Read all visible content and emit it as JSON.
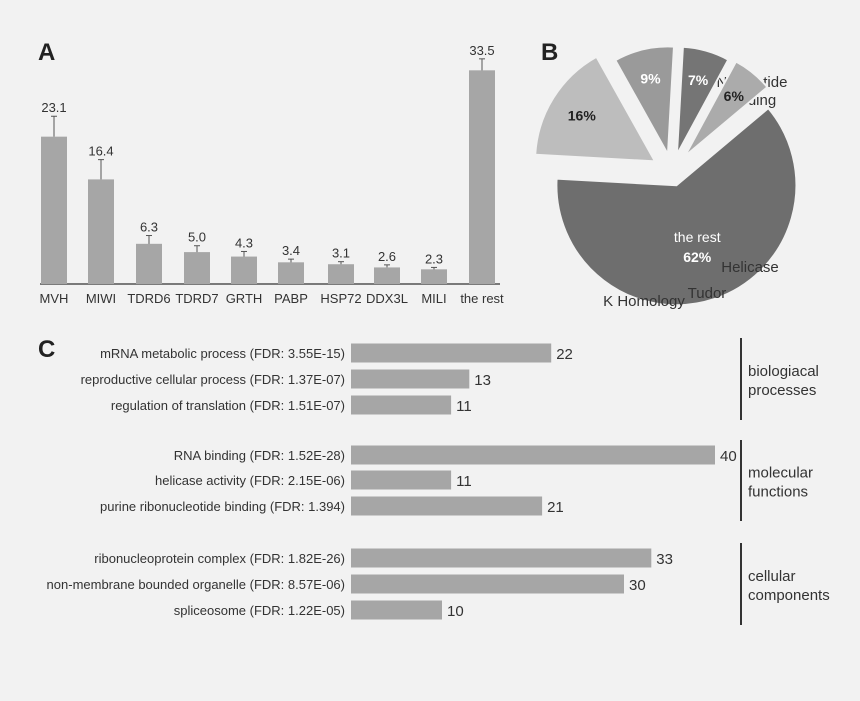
{
  "panels": {
    "a": "A",
    "b": "B",
    "c": "C"
  },
  "colors": {
    "background": "#f2f2f2",
    "bar": "#a6a6a6",
    "axis": "#333333",
    "text": "#333333",
    "pie_dark": "#6e6e6e",
    "pie_light": "#bdbdbd",
    "pie_mid": "#9a9a9a",
    "pie_tudor": "#757575",
    "pie_khom": "#ababab"
  },
  "chart_data": [
    {
      "id": "A",
      "type": "bar",
      "categories": [
        "MVH",
        "MIWI",
        "TDRD6",
        "TDRD7",
        "GRTH",
        "PABP",
        "HSP72",
        "DDX3L",
        "MILI",
        "the rest"
      ],
      "values": [
        23.1,
        16.4,
        6.3,
        5.0,
        4.3,
        3.4,
        3.1,
        2.6,
        2.3,
        33.5
      ],
      "value_labels": [
        "23.1",
        "16.4",
        "6.3",
        "5.0",
        "4.3",
        "3.4",
        "3.1",
        "2.6",
        "2.3",
        "33.5"
      ],
      "error_upper": [
        26.3,
        19.5,
        7.6,
        6.0,
        5.1,
        3.9,
        3.5,
        3.0,
        2.6,
        35.3
      ],
      "ylim": [
        0,
        37
      ],
      "grid": false,
      "title": "",
      "xlabel": "",
      "ylabel": ""
    },
    {
      "id": "B",
      "type": "pie",
      "slices": [
        {
          "label": "the rest",
          "percent_label": "62%",
          "value": 62
        },
        {
          "label": "Nucleotide binding",
          "label_lines": [
            "Nucleotide",
            "binding"
          ],
          "percent_label": "16%",
          "value": 16
        },
        {
          "label": "Helicase",
          "percent_label": "9%",
          "value": 9
        },
        {
          "label": "Tudor",
          "percent_label": "7%",
          "value": 7
        },
        {
          "label": "K Homology",
          "percent_label": "6%",
          "value": 6
        }
      ],
      "exploded": true
    },
    {
      "id": "C",
      "type": "bar",
      "orientation": "horizontal",
      "groups": [
        {
          "name": "biologiacal processes",
          "name_lines": [
            "biologiacal",
            "processes"
          ],
          "items": [
            {
              "label": "mRNA metabolic process (FDR: 3.55E-15)",
              "value": 22
            },
            {
              "label": "reproductive cellular process (FDR: 1.37E-07)",
              "value": 13
            },
            {
              "label": "regulation of translation (FDR: 1.51E-07)",
              "value": 11
            }
          ]
        },
        {
          "name": "molecular functions",
          "name_lines": [
            "molecular",
            "functions"
          ],
          "items": [
            {
              "label": "RNA binding (FDR: 1.52E-28)",
              "value": 40
            },
            {
              "label": "helicase activity (FDR: 2.15E-06)",
              "value": 11
            },
            {
              "label": "purine ribonucleotide binding (FDR: 1.394)",
              "value": 21
            }
          ]
        },
        {
          "name": "cellular components",
          "name_lines": [
            "cellular",
            "components"
          ],
          "items": [
            {
              "label": "ribonucleoprotein complex (FDR: 1.82E-26)",
              "value": 33
            },
            {
              "label": "non-membrane bounded organelle (FDR: 8.57E-06)",
              "value": 30
            },
            {
              "label": "spliceosome (FDR: 1.22E-05)",
              "value": 10
            }
          ]
        }
      ]
    }
  ]
}
